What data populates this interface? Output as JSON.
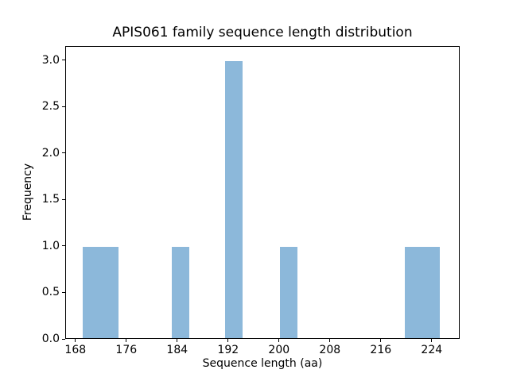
{
  "chart_data": {
    "type": "bar",
    "subtype": "histogram",
    "title": "APIS061 family sequence length distribution",
    "xlabel": "Sequence length (aa)",
    "ylabel": "Frequency",
    "bar_color": "#8CB8DA",
    "axis_color": "#000000",
    "background_color": "#ffffff",
    "grid": false,
    "legend": null,
    "xlim": [
      166.4,
      228.4
    ],
    "ylim": [
      0,
      3.15
    ],
    "x_ticks": [
      {
        "value": 168,
        "label": "168"
      },
      {
        "value": 176,
        "label": "176"
      },
      {
        "value": 184,
        "label": "184"
      },
      {
        "value": 192,
        "label": "192"
      },
      {
        "value": 200,
        "label": "200"
      },
      {
        "value": 208,
        "label": "208"
      },
      {
        "value": 216,
        "label": "216"
      },
      {
        "value": 224,
        "label": "224"
      }
    ],
    "y_ticks": [
      {
        "value": 0,
        "label": "0.0"
      },
      {
        "value": 0.5,
        "label": "0.5"
      },
      {
        "value": 1,
        "label": "1.0"
      },
      {
        "value": 1.5,
        "label": "1.5"
      },
      {
        "value": 2,
        "label": "2.0"
      },
      {
        "value": 2.5,
        "label": "2.5"
      },
      {
        "value": 3,
        "label": "3.0"
      }
    ],
    "bins": [
      {
        "x0": 169.0,
        "x1": 171.8,
        "frequency": 1
      },
      {
        "x0": 171.8,
        "x1": 174.6,
        "frequency": 1
      },
      {
        "x0": 183.0,
        "x1": 185.8,
        "frequency": 1
      },
      {
        "x0": 191.4,
        "x1": 194.2,
        "frequency": 3
      },
      {
        "x0": 200.0,
        "x1": 202.8,
        "frequency": 1
      },
      {
        "x0": 219.6,
        "x1": 222.4,
        "frequency": 1
      },
      {
        "x0": 222.4,
        "x1": 225.2,
        "frequency": 1
      }
    ]
  }
}
